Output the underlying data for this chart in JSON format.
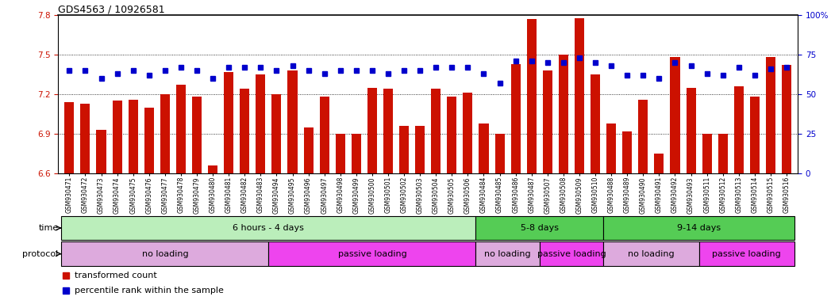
{
  "title": "GDS4563 / 10926581",
  "samples": [
    "GSM930471",
    "GSM930472",
    "GSM930473",
    "GSM930474",
    "GSM930475",
    "GSM930476",
    "GSM930477",
    "GSM930478",
    "GSM930479",
    "GSM930480",
    "GSM930481",
    "GSM930482",
    "GSM930483",
    "GSM930494",
    "GSM930495",
    "GSM930496",
    "GSM930497",
    "GSM930498",
    "GSM930499",
    "GSM930500",
    "GSM930501",
    "GSM930502",
    "GSM930503",
    "GSM930504",
    "GSM930505",
    "GSM930506",
    "GSM930484",
    "GSM930485",
    "GSM930486",
    "GSM930487",
    "GSM930507",
    "GSM930508",
    "GSM930509",
    "GSM930510",
    "GSM930488",
    "GSM930489",
    "GSM930490",
    "GSM930491",
    "GSM930492",
    "GSM930493",
    "GSM930511",
    "GSM930512",
    "GSM930513",
    "GSM930514",
    "GSM930515",
    "GSM930516"
  ],
  "red_values": [
    7.14,
    7.13,
    6.93,
    7.15,
    7.16,
    7.1,
    7.2,
    7.27,
    7.18,
    6.66,
    7.37,
    7.24,
    7.35,
    7.2,
    7.38,
    6.95,
    7.18,
    6.9,
    6.9,
    7.25,
    7.24,
    6.96,
    6.96,
    7.24,
    7.18,
    7.21,
    6.98,
    6.9,
    7.43,
    7.77,
    7.38,
    7.5,
    7.78,
    7.35,
    6.98,
    6.92,
    7.16,
    6.75,
    7.48,
    7.25,
    6.9,
    6.9,
    7.26,
    7.18,
    7.48,
    7.42
  ],
  "blue_values": [
    65,
    65,
    60,
    63,
    65,
    62,
    65,
    67,
    65,
    60,
    67,
    67,
    67,
    65,
    68,
    65,
    63,
    65,
    65,
    65,
    63,
    65,
    65,
    67,
    67,
    67,
    63,
    57,
    71,
    71,
    70,
    70,
    73,
    70,
    68,
    62,
    62,
    60,
    70,
    68,
    63,
    62,
    67,
    62,
    66,
    67
  ],
  "ylim_left": [
    6.6,
    7.8
  ],
  "ylim_right": [
    0,
    100
  ],
  "yticks_left": [
    6.6,
    6.9,
    7.2,
    7.5,
    7.8
  ],
  "yticks_right": [
    0,
    25,
    50,
    75,
    100
  ],
  "bar_color": "#cc1100",
  "dot_color": "#0000cc",
  "baseline": 6.6,
  "time_groups": [
    {
      "label": "6 hours - 4 days",
      "start": 0,
      "end": 25,
      "color": "#bbeebb"
    },
    {
      "label": "5-8 days",
      "start": 26,
      "end": 33,
      "color": "#55cc55"
    },
    {
      "label": "9-14 days",
      "start": 34,
      "end": 45,
      "color": "#55cc55"
    }
  ],
  "protocol_groups": [
    {
      "label": "no loading",
      "start": 0,
      "end": 12,
      "color": "#ddaadd"
    },
    {
      "label": "passive loading",
      "start": 13,
      "end": 25,
      "color": "#ee44ee"
    },
    {
      "label": "no loading",
      "start": 26,
      "end": 29,
      "color": "#ddaadd"
    },
    {
      "label": "passive loading",
      "start": 30,
      "end": 33,
      "color": "#ee44ee"
    },
    {
      "label": "no loading",
      "start": 34,
      "end": 39,
      "color": "#ddaadd"
    },
    {
      "label": "passive loading",
      "start": 40,
      "end": 45,
      "color": "#ee44ee"
    }
  ],
  "legend_red_label": "transformed count",
  "legend_blue_label": "percentile rank within the sample",
  "legend_red_color": "#cc1100",
  "legend_blue_color": "#0000cc"
}
